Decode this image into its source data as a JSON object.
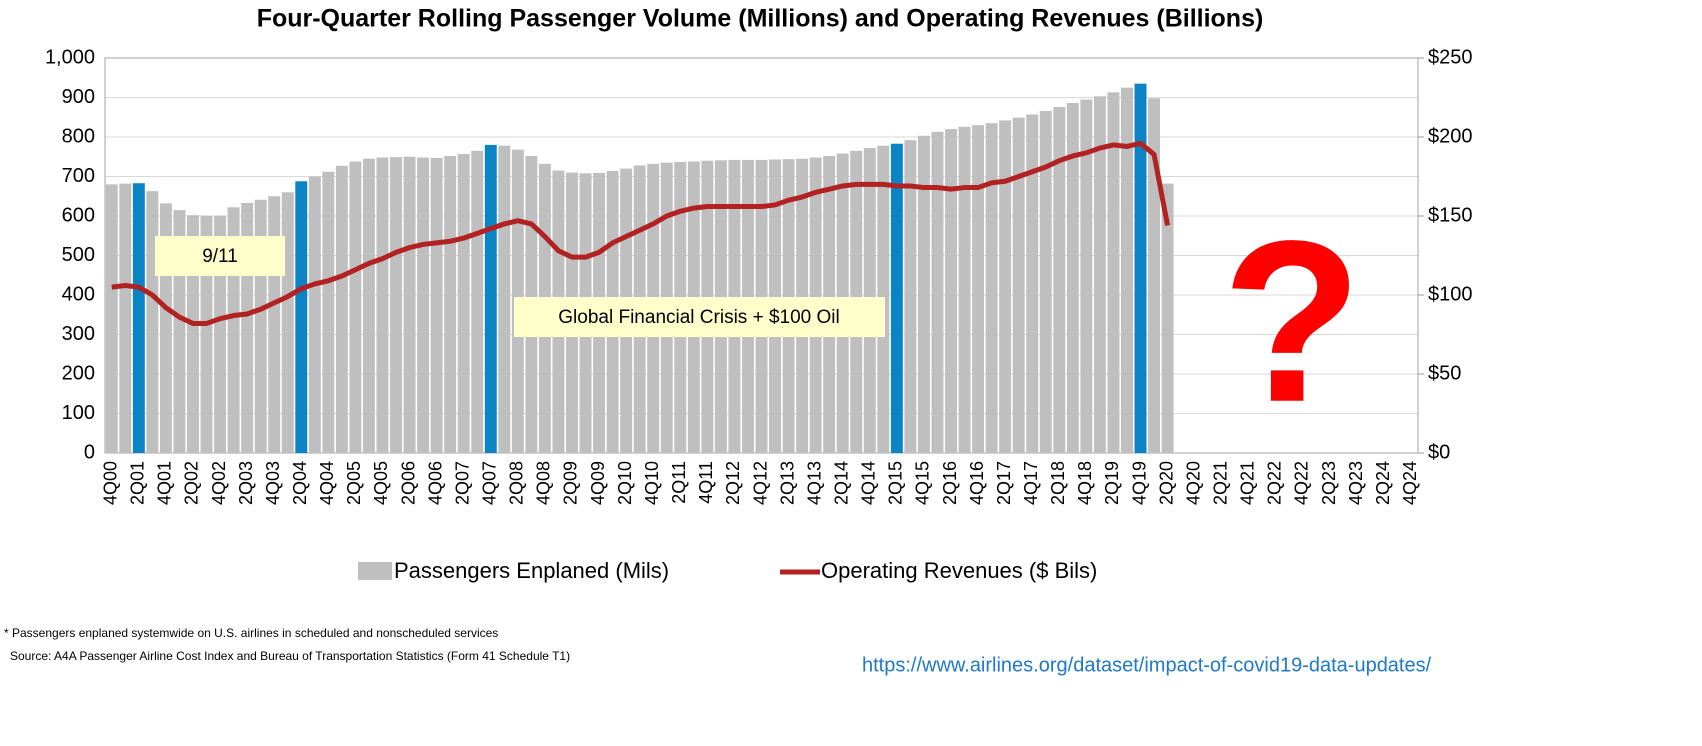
{
  "chart_data": {
    "type": "bar-line",
    "title": "Four-Quarter Rolling Passenger Volume (Millions) and Operating Revenues (Billions)",
    "categories": [
      "4Q00",
      null,
      "2Q01",
      null,
      "4Q01",
      null,
      "2Q02",
      null,
      "4Q02",
      null,
      "2Q03",
      null,
      "4Q03",
      null,
      "2Q04",
      null,
      "4Q04",
      null,
      "2Q05",
      null,
      "4Q05",
      null,
      "2Q06",
      null,
      "4Q06",
      null,
      "2Q07",
      null,
      "4Q07",
      null,
      "2Q08",
      null,
      "4Q08",
      null,
      "2Q09",
      null,
      "4Q09",
      null,
      "2Q10",
      null,
      "4Q10",
      null,
      "2Q11",
      null,
      "4Q11",
      null,
      "2Q12",
      null,
      "4Q12",
      null,
      "2Q13",
      null,
      "4Q13",
      null,
      "2Q14",
      null,
      "4Q14",
      null,
      "2Q15",
      null,
      "4Q15",
      null,
      "2Q16",
      null,
      "4Q16",
      null,
      "2Q17",
      null,
      "4Q17",
      null,
      "2Q18",
      null,
      "4Q18",
      null,
      "2Q19",
      null,
      "4Q19",
      null,
      "2Q20",
      null,
      "4Q20",
      null,
      "2Q21",
      null,
      "4Q21",
      null,
      "2Q22",
      null,
      "4Q22",
      null,
      "2Q23",
      null,
      "4Q23",
      null,
      "2Q24",
      null,
      "4Q24"
    ],
    "series": [
      {
        "name": "Passengers Enplaned (Mils)",
        "type": "bar",
        "color": "#bfbfbf",
        "colors": [
          "#bfbfbf",
          "#bfbfbf",
          "#0b84c6",
          "#bfbfbf",
          "#bfbfbf",
          "#bfbfbf",
          "#bfbfbf",
          "#bfbfbf",
          "#bfbfbf",
          "#bfbfbf",
          "#bfbfbf",
          "#bfbfbf",
          "#bfbfbf",
          "#bfbfbf",
          "#0b84c6",
          "#bfbfbf",
          "#bfbfbf",
          "#bfbfbf",
          "#bfbfbf",
          "#bfbfbf",
          "#bfbfbf",
          "#bfbfbf",
          "#bfbfbf",
          "#bfbfbf",
          "#bfbfbf",
          "#bfbfbf",
          "#bfbfbf",
          "#bfbfbf",
          "#0b84c6",
          "#bfbfbf",
          "#bfbfbf",
          "#bfbfbf",
          "#bfbfbf",
          "#bfbfbf",
          "#bfbfbf",
          "#bfbfbf",
          "#bfbfbf",
          "#bfbfbf",
          "#bfbfbf",
          "#bfbfbf",
          "#bfbfbf",
          "#bfbfbf",
          "#bfbfbf",
          "#bfbfbf",
          "#bfbfbf",
          "#bfbfbf",
          "#bfbfbf",
          "#bfbfbf",
          "#bfbfbf",
          "#bfbfbf",
          "#bfbfbf",
          "#bfbfbf",
          "#bfbfbf",
          "#bfbfbf",
          "#bfbfbf",
          "#bfbfbf",
          "#bfbfbf",
          "#bfbfbf",
          "#0b84c6",
          "#bfbfbf",
          "#bfbfbf",
          "#bfbfbf",
          "#bfbfbf",
          "#bfbfbf",
          "#bfbfbf",
          "#bfbfbf",
          "#bfbfbf",
          "#bfbfbf",
          "#bfbfbf",
          "#bfbfbf",
          "#bfbfbf",
          "#bfbfbf",
          "#bfbfbf",
          "#bfbfbf",
          "#bfbfbf",
          "#bfbfbf",
          "#0b84c6",
          "#bfbfbf",
          "#bfbfbf",
          null,
          null,
          null,
          null,
          null,
          null,
          null,
          null,
          null,
          null,
          null,
          null,
          null,
          null,
          null,
          null,
          null,
          null
        ],
        "values": [
          680,
          682,
          683,
          663,
          632,
          615,
          602,
          601,
          601,
          622,
          633,
          641,
          650,
          660,
          688,
          700,
          712,
          727,
          738,
          745,
          748,
          749,
          750,
          748,
          747,
          752,
          757,
          765,
          780,
          778,
          768,
          752,
          732,
          715,
          710,
          708,
          709,
          714,
          720,
          728,
          732,
          735,
          737,
          738,
          740,
          741,
          742,
          742,
          742,
          743,
          744,
          745,
          748,
          752,
          758,
          765,
          772,
          778,
          783,
          792,
          803,
          813,
          820,
          826,
          830,
          835,
          842,
          849,
          857,
          866,
          876,
          886,
          895,
          903,
          913,
          925,
          935,
          898,
          682,
          null,
          null,
          null,
          null,
          null,
          null,
          null,
          null,
          null,
          null,
          null,
          null,
          null,
          null,
          null,
          null,
          null,
          null
        ]
      },
      {
        "name": "Operating Revenues ($ Bils)",
        "type": "line",
        "axis": "y2",
        "color": "#b22222",
        "values": [
          105,
          106,
          105,
          100,
          92,
          86,
          82,
          82,
          85,
          87,
          88,
          91,
          95,
          99,
          104,
          107,
          109,
          112,
          116,
          120,
          123,
          127,
          130,
          132,
          133,
          134,
          136,
          139,
          142,
          145,
          147,
          145,
          137,
          128,
          124,
          124,
          127,
          133,
          137,
          141,
          145,
          150,
          153,
          155,
          156,
          156,
          156,
          156,
          156,
          157,
          160,
          162,
          165,
          167,
          169,
          170,
          170,
          170,
          169,
          169,
          168,
          168,
          167,
          168,
          168,
          171,
          172,
          175,
          178,
          181,
          185,
          188,
          190,
          193,
          195,
          194,
          196,
          189,
          144,
          null,
          null,
          null,
          null,
          null,
          null,
          null,
          null,
          null,
          null,
          null,
          null,
          null,
          null,
          null,
          null,
          null,
          null
        ]
      }
    ],
    "ylim": [
      0,
      1000
    ],
    "yticks": [
      0,
      100,
      200,
      300,
      400,
      500,
      600,
      700,
      800,
      900,
      {
        "value": 1000,
        "label": "1,000"
      }
    ],
    "y2lim": [
      0,
      250
    ],
    "y2ticks": [
      {
        "value": 0,
        "label": "$0"
      },
      {
        "value": 50,
        "label": "$50"
      },
      {
        "value": 100,
        "label": "$100"
      },
      {
        "value": 150,
        "label": "$150"
      },
      {
        "value": 200,
        "label": "$200"
      },
      {
        "value": 250,
        "label": "$250"
      }
    ],
    "grid": true,
    "legend": "bottom",
    "annotations": [
      "9/11",
      "Global Financial Crisis + $100 Oil",
      "?"
    ],
    "footnotes": [
      "* Passengers enplaned systemwide on U.S. airlines in scheduled and nonscheduled services",
      "Source: A4A Passenger Airline Cost Index and Bureau of Transportation Statistics (Form 41 Schedule T1)"
    ],
    "url": "https://www.airlines.org/dataset/impact-of-covid19-data-updates/"
  }
}
